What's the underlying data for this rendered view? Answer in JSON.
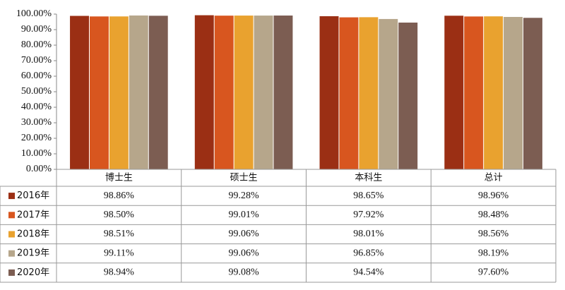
{
  "chart_data": {
    "type": "bar",
    "categories": [
      "博士生",
      "硕士生",
      "本科生",
      "总计"
    ],
    "series": [
      {
        "name": "2016年",
        "color": "#9b2f14",
        "values": [
          98.86,
          99.28,
          98.65,
          98.96
        ],
        "value_labels": [
          "98.86%",
          "99.28%",
          "98.65%",
          "98.96%"
        ]
      },
      {
        "name": "2017年",
        "color": "#d8561f",
        "values": [
          98.5,
          99.01,
          97.92,
          98.48
        ],
        "value_labels": [
          "98.50%",
          "99.01%",
          "97.92%",
          "98.48%"
        ]
      },
      {
        "name": "2018年",
        "color": "#e9a22f",
        "values": [
          98.51,
          99.06,
          98.01,
          98.56
        ],
        "value_labels": [
          "98.51%",
          "99.06%",
          "98.01%",
          "98.56%"
        ]
      },
      {
        "name": "2019年",
        "color": "#b6a68b",
        "values": [
          99.11,
          99.06,
          96.85,
          98.19
        ],
        "value_labels": [
          "99.11%",
          "99.06%",
          "96.85%",
          "98.19%"
        ]
      },
      {
        "name": "2020年",
        "color": "#7c5d52",
        "values": [
          98.94,
          99.08,
          94.54,
          97.6
        ],
        "value_labels": [
          "98.94%",
          "99.08%",
          "94.54%",
          "97.60%"
        ]
      }
    ],
    "ylim": [
      0,
      100
    ],
    "yticks": [
      {
        "value": 0,
        "label": "0.00%"
      },
      {
        "value": 10,
        "label": "10.00%"
      },
      {
        "value": 20,
        "label": "20.00%"
      },
      {
        "value": 30,
        "label": "30.00%"
      },
      {
        "value": 40,
        "label": "40.00%"
      },
      {
        "value": 50,
        "label": "50.00%"
      },
      {
        "value": 60,
        "label": "60.00%"
      },
      {
        "value": 70,
        "label": "70.00%"
      },
      {
        "value": 80,
        "label": "80.00%"
      },
      {
        "value": 90,
        "label": "90.00%"
      },
      {
        "value": 100,
        "label": "100.00%"
      }
    ]
  }
}
